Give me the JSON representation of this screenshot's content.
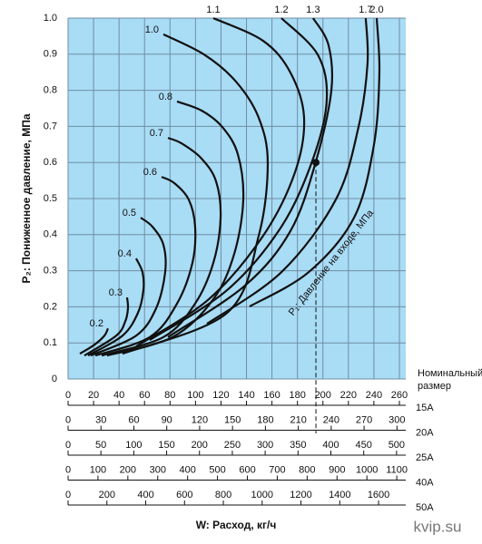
{
  "chart_data": {
    "type": "line",
    "ylabel": "P₂: Пониженное давление, МПа",
    "xlabel": "W: Расход, кг/ч",
    "scale_title": "Номинальный размер",
    "annotation": "P₁: Давление на входе, МПа",
    "watermark": "kvip.su",
    "ylim": [
      0,
      1
    ],
    "yticks": [
      0,
      0.1,
      0.2,
      0.3,
      0.4,
      0.5,
      0.6,
      0.7,
      0.8,
      0.9,
      {
        "value": 1,
        "label": "1.0"
      }
    ],
    "grid": true,
    "background": "#a9dcf5",
    "grid_color": "#6f8ea3",
    "line_color": "#111111",
    "scales": [
      {
        "name": "15A",
        "xlim": [
          0,
          265
        ],
        "ticks": [
          0,
          20,
          40,
          60,
          80,
          100,
          120,
          140,
          160,
          180,
          200,
          220,
          240,
          260
        ]
      },
      {
        "name": "20A",
        "xlim": [
          0,
          308
        ],
        "ticks": [
          0,
          30,
          60,
          90,
          120,
          150,
          180,
          210,
          240,
          270,
          300
        ]
      },
      {
        "name": "25A",
        "xlim": [
          0,
          514
        ],
        "ticks": [
          0,
          50,
          100,
          150,
          200,
          250,
          300,
          350,
          400,
          450,
          500
        ]
      },
      {
        "name": "40A",
        "xlim": [
          0,
          1130
        ],
        "ticks": [
          0,
          100,
          200,
          300,
          400,
          500,
          600,
          700,
          800,
          900,
          1000,
          1100
        ]
      },
      {
        "name": "50A",
        "xlim": [
          0,
          1740
        ],
        "ticks": [
          0,
          200,
          400,
          600,
          800,
          1000,
          1200,
          1400,
          1600
        ]
      }
    ],
    "point": {
      "x": 194.5,
      "y": 0.6
    },
    "series": [
      {
        "name": "0.2",
        "x": [
          9.3,
          20.7,
          28.5,
          31.3
        ],
        "values": [
          0.07,
          0.095,
          0.12,
          0.14
        ]
      },
      {
        "name": "0.3",
        "x": [
          12.8,
          37.8,
          44.9,
          47,
          46.3
        ],
        "values": [
          0.065,
          0.12,
          0.16,
          0.196,
          0.226
        ]
      },
      {
        "name": "0.4",
        "x": [
          15.7,
          42.7,
          54.8,
          59.1,
          58.4,
          53.4
        ],
        "values": [
          0.065,
          0.12,
          0.183,
          0.246,
          0.296,
          0.334
        ]
      },
      {
        "name": "0.5",
        "x": [
          17.8,
          53.4,
          69.1,
          76.2,
          74.8,
          66.2,
          57
        ],
        "values": [
          0.065,
          0.12,
          0.196,
          0.296,
          0.372,
          0.422,
          0.447
        ]
      },
      {
        "name": "0.6",
        "x": [
          21.4,
          64.1,
          85.5,
          97.6,
          99.7,
          94.7,
          83.3,
          73.4
        ],
        "values": [
          0.065,
          0.116,
          0.209,
          0.322,
          0.422,
          0.497,
          0.543,
          0.56
        ]
      },
      {
        "name": "0.7",
        "x": [
          26.4,
          74.8,
          99.7,
          114,
          119.7,
          116.1,
          104.7,
          89,
          78.4
        ],
        "values": [
          0.065,
          0.116,
          0.209,
          0.322,
          0.447,
          0.548,
          0.611,
          0.653,
          0.668
        ]
      },
      {
        "name": "0.8",
        "x": [
          30.6,
          81.9,
          114,
          130.4,
          137.5,
          133.2,
          121.1,
          104.7,
          85.5
        ],
        "values": [
          0.065,
          0.116,
          0.221,
          0.347,
          0.497,
          0.623,
          0.698,
          0.744,
          0.769
        ]
      },
      {
        "name": "1.0",
        "x": [
          42.7,
          124.7,
          149.6,
          156.7,
          149.6,
          131.8,
          106.8,
          74.8
        ],
        "values": [
          0.07,
          0.183,
          0.397,
          0.598,
          0.724,
          0.824,
          0.899,
          0.955
        ]
      },
      {
        "name": "1.1",
        "x": [
          53.4,
          110.4,
          153.1,
          178.1,
          185.2,
          174.5,
          153.1,
          114
        ],
        "values": [
          0.09,
          0.221,
          0.397,
          0.573,
          0.724,
          0.849,
          0.937,
          1
        ]
      },
      {
        "name": "1.2",
        "x": [
          64.1,
          124.7,
          167.4,
          192.3,
          203,
          195.9,
          167.4
        ],
        "values": [
          0.108,
          0.246,
          0.422,
          0.611,
          0.774,
          0.899,
          1
        ]
      },
      {
        "name": "1.3",
        "x": [
          78.4,
          138.9,
          174.5,
          194.5,
          206.6,
          204.4,
          192.3
        ],
        "values": [
          0.116,
          0.259,
          0.41,
          0.603,
          0.799,
          0.925,
          1
        ]
      },
      {
        "name": "1.7",
        "x": [
          109,
          167.4,
          210.1,
          227.9,
          235,
          233.6
        ],
        "values": [
          0.153,
          0.296,
          0.497,
          0.698,
          0.874,
          1
        ]
      },
      {
        "name": "2.0",
        "x": [
          142.5,
          188.8,
          224.4,
          240,
          244.3,
          242.2
        ],
        "values": [
          0.201,
          0.296,
          0.447,
          0.648,
          0.849,
          1
        ]
      }
    ]
  }
}
